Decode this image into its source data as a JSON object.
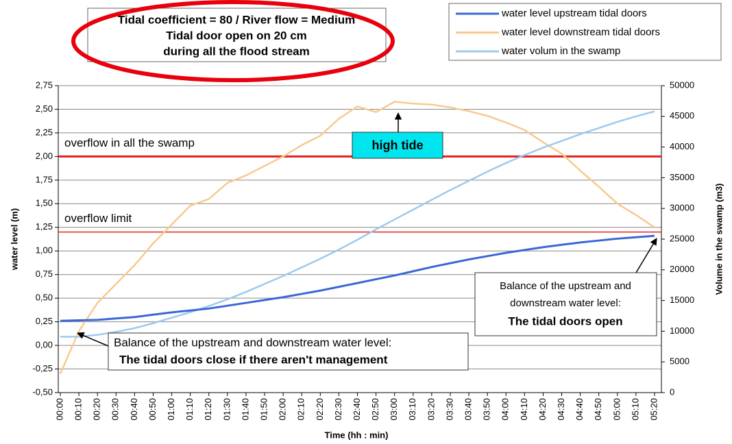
{
  "chart_data": {
    "type": "line",
    "title": [
      "Tidal coefficient = 80 / River flow = Medium",
      "Tidal door open on 20 cm",
      "during all the flood stream"
    ],
    "x_label": "Time (hh : min)",
    "y_label": "water level (m)",
    "y2_label": "Volume in the swamp (m3)",
    "categories": [
      "00:00",
      "00:10",
      "00:20",
      "00:30",
      "00:40",
      "00:50",
      "01:00",
      "01:10",
      "01:20",
      "01:30",
      "01:40",
      "01:50",
      "02:00",
      "02:10",
      "02:20",
      "02:30",
      "02:40",
      "02:50",
      "03:00",
      "03:10",
      "03:20",
      "03:30",
      "03:40",
      "03:50",
      "04:00",
      "04:10",
      "04:20",
      "04:30",
      "04:40",
      "04:50",
      "05:00",
      "05:10",
      "05:20"
    ],
    "series": [
      {
        "name": "water level upstream tidal doors",
        "color": "#3a66d6",
        "values": [
          0.26,
          0.265,
          0.27,
          0.285,
          0.3,
          0.325,
          0.35,
          0.37,
          0.39,
          0.42,
          0.45,
          0.48,
          0.51,
          0.545,
          0.58,
          0.62,
          0.66,
          0.7,
          0.74,
          0.785,
          0.83,
          0.87,
          0.91,
          0.945,
          0.98,
          1.01,
          1.04,
          1.065,
          1.09,
          1.11,
          1.13,
          1.145,
          1.16
        ]
      },
      {
        "name": "water level downstream tidal doors",
        "color": "#f9c98e",
        "values": [
          -0.3,
          0.15,
          0.45,
          0.65,
          0.85,
          1.08,
          1.28,
          1.48,
          1.55,
          1.72,
          1.8,
          1.9,
          2.0,
          2.12,
          2.22,
          2.4,
          2.53,
          2.47,
          2.58,
          2.56,
          2.55,
          2.52,
          2.48,
          2.43,
          2.36,
          2.28,
          2.15,
          2.03,
          1.85,
          1.68,
          1.5,
          1.38,
          1.25
        ]
      },
      {
        "name": "water volum in the swamp",
        "color": "#9dc9ee",
        "axis": "y2",
        "values": [
          9100,
          9100,
          9400,
          9900,
          10500,
          11300,
          12200,
          13100,
          14100,
          15200,
          16400,
          17700,
          19000,
          20400,
          21800,
          23300,
          24900,
          26600,
          28200,
          29800,
          31400,
          33000,
          34500,
          36000,
          37400,
          38700,
          39900,
          41000,
          42100,
          43100,
          44100,
          45000,
          45800
        ]
      }
    ],
    "ylim": [
      -0.5,
      2.75
    ],
    "yticks": [
      {
        "value": -0.5,
        "label": "-0,50"
      },
      {
        "value": -0.25,
        "label": "-0,25"
      },
      {
        "value": 0,
        "label": "0,00"
      },
      {
        "value": 0.25,
        "label": "0,25"
      },
      {
        "value": 0.5,
        "label": "0,50"
      },
      {
        "value": 0.75,
        "label": "0,75"
      },
      {
        "value": 1,
        "label": "1,00"
      },
      {
        "value": 1.25,
        "label": "1,25"
      },
      {
        "value": 1.5,
        "label": "1,50"
      },
      {
        "value": 1.75,
        "label": "1,75"
      },
      {
        "value": 2,
        "label": "2,00"
      },
      {
        "value": 2.25,
        "label": "2,25"
      },
      {
        "value": 2.5,
        "label": "2,50"
      },
      {
        "value": 2.75,
        "label": "2,75"
      }
    ],
    "y2lim": [
      0,
      50000
    ],
    "y2ticks": [
      0,
      5000,
      10000,
      15000,
      20000,
      25000,
      30000,
      35000,
      40000,
      45000,
      50000
    ],
    "grid": true,
    "reference_lines": [
      {
        "value": 2,
        "label": "overflow in all the swamp",
        "color": "#e02020"
      },
      {
        "value": 1.2,
        "label": "overflow limit",
        "color": "#e02020"
      }
    ],
    "annotations": {
      "high_tide": "high tide",
      "doors_close": [
        "Balance of the upstream and downstream water level:",
        "The tidal doors close if there aren't management"
      ],
      "doors_open": [
        "Balance of the upstream and",
        "downstream water level:",
        "The tidal doors open"
      ]
    }
  }
}
